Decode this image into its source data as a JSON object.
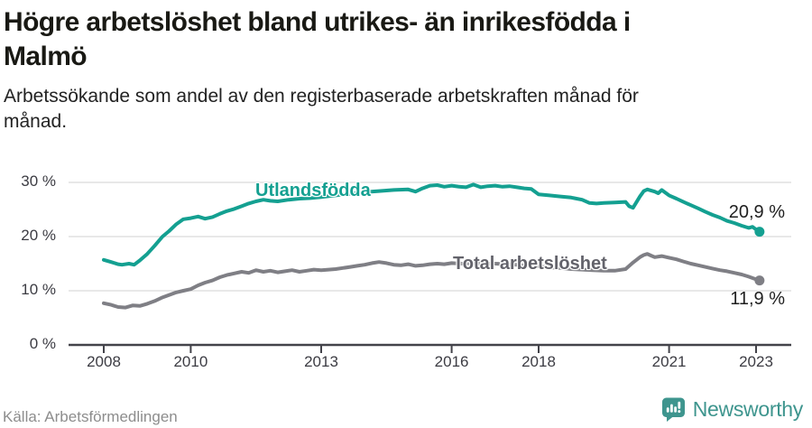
{
  "header": {
    "title_lines": [
      "Högre arbetslöshet bland utrikes- än inrikesfödda i",
      "Malmö"
    ],
    "subtitle_lines": [
      "Arbetssökande som andel av den registerbaserade arbetskraften månad för",
      "månad."
    ]
  },
  "chart_data": {
    "type": "line",
    "title": "Högre arbetslöshet bland utrikes- än inrikesfödda i Malmö",
    "subtitle": "Arbetssökande som andel av den registerbaserade arbetskraften månad för månad.",
    "unit": "%",
    "xlim": [
      2007.2,
      2023.8
    ],
    "ylim": [
      0,
      33
    ],
    "grid": "horizontal",
    "legend_position": "inline-on-lines",
    "axis_color": "#43434a",
    "grid_color": "#dadada",
    "y_ticks": [
      {
        "value": 0,
        "label": "0 %"
      },
      {
        "value": 10,
        "label": "10 %"
      },
      {
        "value": 20,
        "label": "20 %"
      },
      {
        "value": 30,
        "label": "30 %"
      }
    ],
    "x_ticks": [
      {
        "value": 2008,
        "label": "2008"
      },
      {
        "value": 2010,
        "label": "2010"
      },
      {
        "value": 2013,
        "label": "2013"
      },
      {
        "value": 2016,
        "label": "2016"
      },
      {
        "value": 2018,
        "label": "2018"
      },
      {
        "value": 2021,
        "label": "2021"
      },
      {
        "value": 2023,
        "label": "2023"
      }
    ],
    "series": [
      {
        "name": "Utlandsfödda",
        "color": "#14a091",
        "end_label": "20,9 %",
        "final_value": 20.9,
        "points": [
          [
            2008.0,
            15.7
          ],
          [
            2008.17,
            15.3
          ],
          [
            2008.33,
            14.9
          ],
          [
            2008.42,
            14.8
          ],
          [
            2008.58,
            15.0
          ],
          [
            2008.7,
            14.8
          ],
          [
            2008.83,
            15.6
          ],
          [
            2009.0,
            16.8
          ],
          [
            2009.17,
            18.3
          ],
          [
            2009.35,
            20.0
          ],
          [
            2009.5,
            21.0
          ],
          [
            2009.67,
            22.3
          ],
          [
            2009.83,
            23.2
          ],
          [
            2010.0,
            23.4
          ],
          [
            2010.17,
            23.7
          ],
          [
            2010.33,
            23.3
          ],
          [
            2010.5,
            23.6
          ],
          [
            2010.67,
            24.2
          ],
          [
            2010.83,
            24.7
          ],
          [
            2011.0,
            25.1
          ],
          [
            2011.17,
            25.6
          ],
          [
            2011.33,
            26.1
          ],
          [
            2011.5,
            26.5
          ],
          [
            2011.67,
            26.8
          ],
          [
            2011.83,
            26.6
          ],
          [
            2012.0,
            26.5
          ],
          [
            2012.25,
            26.8
          ],
          [
            2012.5,
            27.0
          ],
          [
            2012.75,
            27.1
          ],
          [
            2013.0,
            27.3
          ],
          [
            2013.33,
            27.6
          ],
          [
            2013.67,
            27.9
          ],
          [
            2014.0,
            28.2
          ],
          [
            2014.33,
            28.4
          ],
          [
            2014.67,
            28.6
          ],
          [
            2015.0,
            28.7
          ],
          [
            2015.17,
            28.3
          ],
          [
            2015.33,
            28.9
          ],
          [
            2015.5,
            29.4
          ],
          [
            2015.67,
            29.5
          ],
          [
            2015.83,
            29.2
          ],
          [
            2016.0,
            29.4
          ],
          [
            2016.17,
            29.2
          ],
          [
            2016.33,
            29.1
          ],
          [
            2016.5,
            29.6
          ],
          [
            2016.67,
            29.1
          ],
          [
            2016.83,
            29.3
          ],
          [
            2017.0,
            29.4
          ],
          [
            2017.17,
            29.2
          ],
          [
            2017.33,
            29.3
          ],
          [
            2017.5,
            29.1
          ],
          [
            2017.67,
            28.9
          ],
          [
            2017.83,
            28.8
          ],
          [
            2018.0,
            27.8
          ],
          [
            2018.25,
            27.6
          ],
          [
            2018.5,
            27.4
          ],
          [
            2018.75,
            27.2
          ],
          [
            2019.0,
            26.8
          ],
          [
            2019.17,
            26.2
          ],
          [
            2019.33,
            26.1
          ],
          [
            2019.5,
            26.2
          ],
          [
            2019.75,
            26.3
          ],
          [
            2020.0,
            26.4
          ],
          [
            2020.08,
            25.6
          ],
          [
            2020.17,
            25.3
          ],
          [
            2020.33,
            27.4
          ],
          [
            2020.42,
            28.4
          ],
          [
            2020.5,
            28.7
          ],
          [
            2020.67,
            28.3
          ],
          [
            2020.75,
            28.0
          ],
          [
            2020.83,
            28.6
          ],
          [
            2021.0,
            27.6
          ],
          [
            2021.17,
            27.0
          ],
          [
            2021.33,
            26.4
          ],
          [
            2021.5,
            25.8
          ],
          [
            2021.67,
            25.2
          ],
          [
            2021.83,
            24.6
          ],
          [
            2022.0,
            24.0
          ],
          [
            2022.17,
            23.5
          ],
          [
            2022.33,
            22.9
          ],
          [
            2022.5,
            22.5
          ],
          [
            2022.67,
            22.0
          ],
          [
            2022.83,
            21.6
          ],
          [
            2022.92,
            21.8
          ],
          [
            2023.0,
            21.3
          ],
          [
            2023.08,
            20.9
          ]
        ]
      },
      {
        "name": "Total arbetslöshet",
        "color": "#7f7f85",
        "end_label": "11,9 %",
        "final_value": 11.9,
        "points": [
          [
            2008.0,
            7.7
          ],
          [
            2008.17,
            7.4
          ],
          [
            2008.33,
            7.0
          ],
          [
            2008.5,
            6.9
          ],
          [
            2008.67,
            7.3
          ],
          [
            2008.83,
            7.2
          ],
          [
            2009.0,
            7.6
          ],
          [
            2009.17,
            8.1
          ],
          [
            2009.33,
            8.7
          ],
          [
            2009.5,
            9.2
          ],
          [
            2009.67,
            9.7
          ],
          [
            2009.83,
            10.0
          ],
          [
            2010.0,
            10.3
          ],
          [
            2010.17,
            11.0
          ],
          [
            2010.33,
            11.5
          ],
          [
            2010.5,
            11.9
          ],
          [
            2010.67,
            12.5
          ],
          [
            2010.83,
            12.9
          ],
          [
            2011.0,
            13.2
          ],
          [
            2011.17,
            13.5
          ],
          [
            2011.33,
            13.3
          ],
          [
            2011.5,
            13.8
          ],
          [
            2011.67,
            13.5
          ],
          [
            2011.83,
            13.7
          ],
          [
            2012.0,
            13.4
          ],
          [
            2012.17,
            13.6
          ],
          [
            2012.33,
            13.8
          ],
          [
            2012.5,
            13.5
          ],
          [
            2012.67,
            13.7
          ],
          [
            2012.83,
            13.9
          ],
          [
            2013.0,
            13.8
          ],
          [
            2013.17,
            13.9
          ],
          [
            2013.33,
            14.0
          ],
          [
            2013.5,
            14.2
          ],
          [
            2013.67,
            14.4
          ],
          [
            2013.83,
            14.6
          ],
          [
            2014.0,
            14.8
          ],
          [
            2014.17,
            15.1
          ],
          [
            2014.33,
            15.3
          ],
          [
            2014.5,
            15.1
          ],
          [
            2014.67,
            14.8
          ],
          [
            2014.83,
            14.7
          ],
          [
            2015.0,
            14.9
          ],
          [
            2015.17,
            14.6
          ],
          [
            2015.33,
            14.7
          ],
          [
            2015.5,
            14.9
          ],
          [
            2015.67,
            15.0
          ],
          [
            2015.83,
            14.9
          ],
          [
            2016.0,
            15.1
          ],
          [
            2016.25,
            15.0
          ],
          [
            2016.5,
            15.1
          ],
          [
            2016.75,
            15.0
          ],
          [
            2017.0,
            15.0
          ],
          [
            2017.25,
            14.9
          ],
          [
            2017.5,
            14.8
          ],
          [
            2017.75,
            14.6
          ],
          [
            2018.0,
            14.5
          ],
          [
            2018.25,
            14.3
          ],
          [
            2018.5,
            14.2
          ],
          [
            2018.75,
            14.0
          ],
          [
            2019.0,
            13.9
          ],
          [
            2019.25,
            13.8
          ],
          [
            2019.5,
            13.7
          ],
          [
            2019.75,
            13.7
          ],
          [
            2020.0,
            14.0
          ],
          [
            2020.17,
            15.2
          ],
          [
            2020.33,
            16.2
          ],
          [
            2020.42,
            16.6
          ],
          [
            2020.5,
            16.8
          ],
          [
            2020.58,
            16.5
          ],
          [
            2020.67,
            16.2
          ],
          [
            2020.83,
            16.4
          ],
          [
            2021.0,
            16.1
          ],
          [
            2021.17,
            15.8
          ],
          [
            2021.33,
            15.4
          ],
          [
            2021.5,
            15.0
          ],
          [
            2021.67,
            14.7
          ],
          [
            2021.83,
            14.4
          ],
          [
            2022.0,
            14.1
          ],
          [
            2022.17,
            13.8
          ],
          [
            2022.33,
            13.6
          ],
          [
            2022.5,
            13.3
          ],
          [
            2022.67,
            13.0
          ],
          [
            2022.83,
            12.6
          ],
          [
            2023.0,
            12.1
          ],
          [
            2023.08,
            11.9
          ]
        ]
      }
    ]
  },
  "footer": {
    "source": "Källa: Arbetsförmedlingen",
    "logo_text": "Newsworthy",
    "brand_color": "#3e958e"
  }
}
